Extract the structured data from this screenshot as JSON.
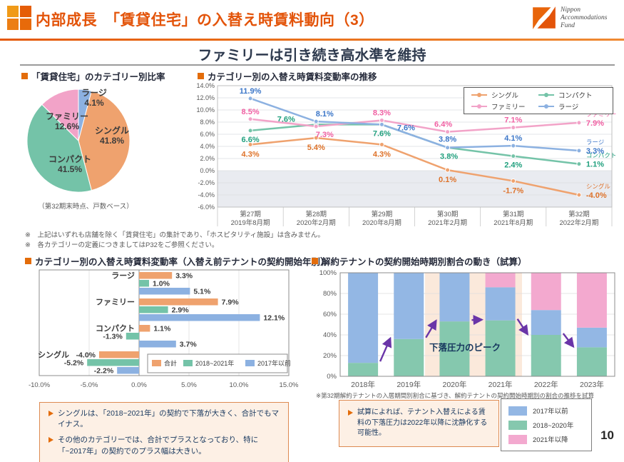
{
  "header": {
    "title": "内部成長　「賃貸住宅」の入替え時賃料動向（3）",
    "logo": {
      "line1": "Nippon",
      "line2": "Accommodations",
      "line3": "Fund"
    }
  },
  "main_title": "ファミリーは引き続き高水準を維持",
  "sections": {
    "pie": {
      "title": "「賃貸住宅」のカテゴリー別比率",
      "caption": "（第32期末時点、戸数ベース）"
    },
    "line": {
      "title": "カテゴリー別の入替え時賃料変動率の推移"
    },
    "bar": {
      "title": "カテゴリー別の入替え時賃料変動率（入替え前テナントの契約開始年別）"
    },
    "stack": {
      "title": "解約テナントの契約開始時期別割合の動き（試算）",
      "note": "※第32期解約テナントの入居期間別割合に基づき、解約テナントの契約開始時期別の割合の推移を試算"
    }
  },
  "notes": [
    "※　上記はいずれも店舗を除く「賃貸住宅」の集計であり、「ホスピタリティ施設」は含みません。",
    "※　各カテゴリーの定義につきましてはP32をご参照ください。"
  ],
  "callouts": {
    "left": {
      "items": [
        "シングルは、「2018~2021年」の契約で下落が大きく、合計でもマイナス。",
        "その他のカテゴリーでは、合計でプラスとなっており、特に「~2017年」の契約でのプラス幅は大きい。"
      ]
    },
    "right": {
      "items": [
        "試算によれば、テナント入替えによる賃料の下落圧力は2022年以降に沈静化する可能性。"
      ]
    }
  },
  "page_number": "10",
  "colors": {
    "accent_orange": "#E3540A",
    "series_orange": "#EFA26E",
    "series_green": "#74C3A8",
    "series_pink": "#F2A3C8",
    "series_blue": "#8CB1E1",
    "purple_arrow": "#6A35A8"
  },
  "chart_data": [
    {
      "type": "pie",
      "title": "「賃貸住宅」のカテゴリー別比率",
      "labels": [
        "シングル",
        "コンパクト",
        "ファミリー",
        "ラージ"
      ],
      "values": [
        41.8,
        41.5,
        12.6,
        4.1
      ],
      "colors": [
        "#EFA26E",
        "#74C3A8",
        "#F2A3C8",
        "#8CB1E1"
      ],
      "layout_hint": "clockwise from top: ラージ, シングル, コンパクト, ファミリー"
    },
    {
      "type": "line",
      "title": "カテゴリー別の入替え時賃料変動率の推移",
      "categories": [
        [
          "第27期",
          "2019年8月期"
        ],
        [
          "第28期",
          "2020年2月期"
        ],
        [
          "第29期",
          "2020年8月期"
        ],
        [
          "第30期",
          "2021年2月期"
        ],
        [
          "第31期",
          "2021年8月期"
        ],
        [
          "第32期",
          "2022年2月期"
        ]
      ],
      "series": [
        {
          "name": "シングル",
          "color": "#EFA26E",
          "label_color": "#DE7229",
          "values": [
            4.3,
            5.4,
            4.3,
            0.1,
            -1.7,
            -4.0
          ]
        },
        {
          "name": "コンパクト",
          "color": "#74C3A8",
          "label_color": "#21A07E",
          "values": [
            6.6,
            7.6,
            7.6,
            3.8,
            2.4,
            1.1
          ]
        },
        {
          "name": "ファミリー",
          "color": "#F2A3C8",
          "label_color": "#F05FA2",
          "values": [
            8.5,
            7.3,
            8.3,
            6.4,
            7.1,
            7.9
          ]
        },
        {
          "name": "ラージ",
          "color": "#8CB1E1",
          "label_color": "#3B76C8",
          "values": [
            11.9,
            8.1,
            7.6,
            3.8,
            4.1,
            3.3
          ]
        }
      ],
      "ylim": [
        -6,
        14
      ],
      "ytick_step": 2,
      "grid": true,
      "legend_position": "top-right",
      "shaded_below_zero": true
    },
    {
      "type": "bar",
      "orientation": "horizontal",
      "title": "カテゴリー別の入替え時賃料変動率（入替え前テナントの契約開始年別）",
      "categories": [
        "ラージ",
        "ファミリー",
        "コンパクト",
        "シングル"
      ],
      "series": [
        {
          "name": "合計",
          "color": "#EFA26E",
          "values": [
            3.3,
            7.9,
            1.1,
            -4.0
          ]
        },
        {
          "name": "2018~2021年",
          "color": "#74C3A8",
          "values": [
            1.0,
            2.9,
            -1.3,
            -5.2
          ]
        },
        {
          "name": "2017年以前",
          "color": "#8CB1E1",
          "values": [
            5.1,
            12.1,
            3.7,
            -2.2
          ]
        }
      ],
      "xlim": [
        -10,
        15
      ],
      "xticks": [
        "-10.0%",
        "-5.0%",
        "0.0%",
        "5.0%",
        "10.0%",
        "15.0%"
      ],
      "legend_position": "bottom-right-inside"
    },
    {
      "type": "bar",
      "stacked": true,
      "title": "解約テナントの契約開始時期別割合の動き（試算）",
      "categories": [
        "2018年",
        "2019年",
        "2020年",
        "2021年",
        "2022年",
        "2023年"
      ],
      "series": [
        {
          "name": "2018~2020年",
          "color": "#85C8AE",
          "values": [
            13,
            36,
            53,
            54,
            40,
            28
          ]
        },
        {
          "name": "2017年以前",
          "color": "#93B7E4",
          "values": [
            87,
            64,
            47,
            32,
            24,
            19
          ]
        },
        {
          "name": "2021年以降",
          "color": "#F3A9CF",
          "values": [
            0,
            0,
            0,
            14,
            36,
            53
          ]
        }
      ],
      "ylim": [
        0,
        100
      ],
      "yticks": [
        "0%",
        "20%",
        "40%",
        "60%",
        "80%",
        "100%"
      ],
      "annotation": "下落圧力のピーク",
      "highlight_band": "2020年～2021年",
      "legend": [
        {
          "label": "2017年以前",
          "color": "#93B7E4"
        },
        {
          "label": "2018~2020年",
          "color": "#85C8AE"
        },
        {
          "label": "2021年以降",
          "color": "#F3A9CF"
        }
      ]
    }
  ]
}
